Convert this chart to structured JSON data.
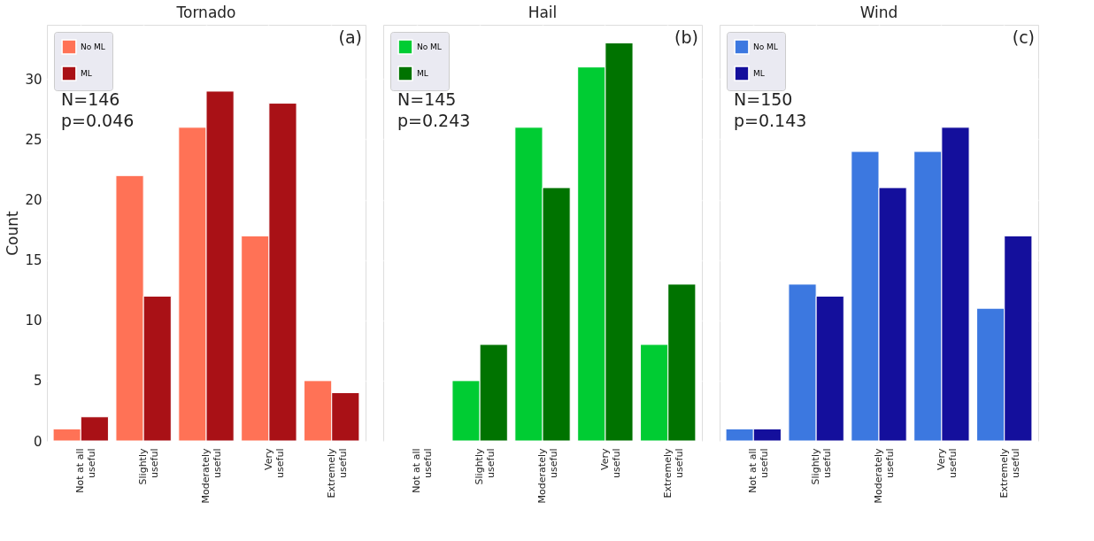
{
  "chart_data": [
    {
      "type": "bar",
      "title": "Tornado",
      "ylabel": "Count",
      "categories": [
        "Not at all useful",
        "Slightly useful",
        "Moderately useful",
        "Very useful",
        "Extremely useful"
      ],
      "series": [
        {
          "name": "No ML",
          "color": "#ff7256",
          "values": [
            1,
            22,
            26,
            17,
            5
          ]
        },
        {
          "name": "ML",
          "color": "#a91116",
          "values": [
            2,
            12,
            29,
            28,
            4
          ]
        }
      ],
      "ylim": [
        0,
        34.5
      ],
      "yticks": [
        0,
        5,
        10,
        15,
        20,
        25,
        30
      ],
      "grid": true,
      "legend": "top left",
      "annotations": [
        "(a)",
        "N=146",
        "p=0.046"
      ]
    },
    {
      "type": "bar",
      "title": "Hail",
      "categories": [
        "Not at all useful",
        "Slightly useful",
        "Moderately useful",
        "Very useful",
        "Extremely useful"
      ],
      "series": [
        {
          "name": "No ML",
          "color": "#00cc33",
          "values": [
            0,
            5,
            26,
            31,
            8
          ]
        },
        {
          "name": "ML",
          "color": "#007300",
          "values": [
            0,
            8,
            21,
            33,
            13
          ]
        }
      ],
      "ylim": [
        0,
        34.5
      ],
      "yticks": [
        0,
        5,
        10,
        15,
        20,
        25,
        30
      ],
      "grid": true,
      "legend": "top left",
      "tick_labels": "x",
      "annotations": [
        "(b)",
        "N=145",
        "p=0.243"
      ]
    },
    {
      "type": "bar",
      "title": "Wind",
      "categories": [
        "Not at all useful",
        "Slightly useful",
        "Moderately useful",
        "Very useful",
        "Extremely useful"
      ],
      "series": [
        {
          "name": "No ML",
          "color": "#3c78e0",
          "values": [
            1,
            13,
            24,
            24,
            11
          ]
        },
        {
          "name": "ML",
          "color": "#140f9c",
          "values": [
            1,
            12,
            21,
            26,
            17
          ]
        }
      ],
      "ylim": [
        0,
        34.5
      ],
      "yticks": [
        0,
        5,
        10,
        15,
        20,
        25,
        30
      ],
      "grid": true,
      "legend": "top left",
      "tick_labels": "x",
      "annotations": [
        "(c)",
        "N=150",
        "p=0.143"
      ]
    }
  ]
}
